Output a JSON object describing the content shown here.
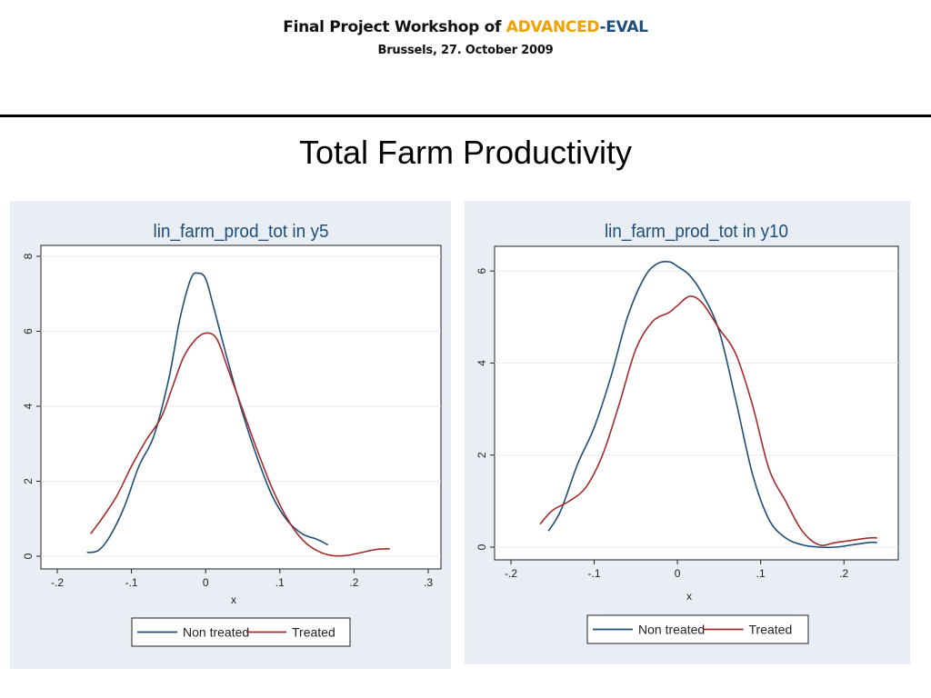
{
  "header": {
    "title_prefix": "Final Project Workshop of ",
    "title_adv": "ADVANCED",
    "title_dash": "-",
    "title_eval": "EVAL",
    "date": "Brussels, 27. October 2009",
    "colors": {
      "advanced": "#f0a000",
      "eval": "#1f4e79"
    }
  },
  "slide": {
    "title": "Total Farm Productivity"
  },
  "chart_data": [
    {
      "type": "line",
      "title": "lin_farm_prod_tot in y5",
      "xlabel": "x",
      "ylabel": "",
      "xlim": [
        -0.2,
        0.3
      ],
      "ylim": [
        0,
        8
      ],
      "xticks": [
        -0.2,
        -0.1,
        0,
        0.1,
        0.2,
        0.3
      ],
      "xtick_labels": [
        "-.2",
        "-.1",
        "0",
        ".1",
        ".2",
        ".3"
      ],
      "yticks": [
        0,
        2,
        4,
        6,
        8
      ],
      "ytick_labels": [
        "0",
        "2",
        "4",
        "6",
        "8"
      ],
      "grid": true,
      "legend_position": "bottom",
      "series": [
        {
          "name": "Non treated",
          "color": "#1f4e79",
          "x": [
            -0.16,
            -0.145,
            -0.13,
            -0.11,
            -0.09,
            -0.07,
            -0.05,
            -0.035,
            -0.02,
            -0.01,
            0.0,
            0.01,
            0.03,
            0.05,
            0.07,
            0.09,
            0.11,
            0.13,
            0.15,
            0.165
          ],
          "y": [
            0.1,
            0.15,
            0.5,
            1.3,
            2.4,
            3.2,
            4.7,
            6.3,
            7.4,
            7.55,
            7.4,
            6.7,
            5.2,
            3.8,
            2.6,
            1.6,
            0.95,
            0.6,
            0.45,
            0.3
          ]
        },
        {
          "name": "Treated",
          "color": "#a52a2a",
          "x": [
            -0.155,
            -0.14,
            -0.12,
            -0.1,
            -0.08,
            -0.06,
            -0.045,
            -0.03,
            -0.015,
            0.0,
            0.015,
            0.03,
            0.05,
            0.07,
            0.09,
            0.11,
            0.13,
            0.15,
            0.17,
            0.19,
            0.21,
            0.23,
            0.248
          ],
          "y": [
            0.6,
            1.0,
            1.6,
            2.4,
            3.1,
            3.7,
            4.5,
            5.3,
            5.75,
            5.95,
            5.8,
            5.0,
            3.9,
            2.8,
            1.8,
            1.0,
            0.45,
            0.15,
            0.02,
            0.02,
            0.1,
            0.18,
            0.2
          ]
        }
      ]
    },
    {
      "type": "line",
      "title": "lin_farm_prod_tot in y10",
      "xlabel": "x",
      "ylabel": "",
      "xlim": [
        -0.2,
        0.25
      ],
      "ylim": [
        0,
        6.3
      ],
      "xticks": [
        -0.2,
        -0.1,
        0,
        0.1,
        0.2
      ],
      "xtick_labels": [
        "-.2",
        "-.1",
        "0",
        ".1",
        ".2"
      ],
      "yticks": [
        0,
        2,
        4,
        6
      ],
      "ytick_labels": [
        "0",
        "2",
        "4",
        "6"
      ],
      "grid": true,
      "legend_position": "bottom",
      "series": [
        {
          "name": "Non treated",
          "color": "#1f4e79",
          "x": [
            -0.155,
            -0.14,
            -0.12,
            -0.1,
            -0.08,
            -0.06,
            -0.04,
            -0.025,
            -0.01,
            0.0,
            0.015,
            0.03,
            0.05,
            0.07,
            0.09,
            0.11,
            0.13,
            0.15,
            0.17,
            0.19,
            0.21,
            0.23,
            0.24
          ],
          "y": [
            0.35,
            0.8,
            1.8,
            2.6,
            3.7,
            5.0,
            5.85,
            6.15,
            6.2,
            6.1,
            5.9,
            5.5,
            4.7,
            3.2,
            1.6,
            0.6,
            0.2,
            0.05,
            0.0,
            0.0,
            0.05,
            0.1,
            0.1
          ]
        },
        {
          "name": "Treated",
          "color": "#a52a2a",
          "x": [
            -0.165,
            -0.15,
            -0.13,
            -0.11,
            -0.09,
            -0.07,
            -0.05,
            -0.03,
            -0.01,
            0.0,
            0.015,
            0.03,
            0.05,
            0.07,
            0.09,
            0.11,
            0.13,
            0.15,
            0.17,
            0.19,
            0.21,
            0.23,
            0.24
          ],
          "y": [
            0.5,
            0.8,
            1.0,
            1.3,
            2.0,
            3.1,
            4.3,
            4.9,
            5.1,
            5.25,
            5.45,
            5.3,
            4.75,
            4.2,
            3.1,
            1.7,
            1.0,
            0.35,
            0.05,
            0.1,
            0.15,
            0.2,
            0.2
          ]
        }
      ]
    }
  ]
}
